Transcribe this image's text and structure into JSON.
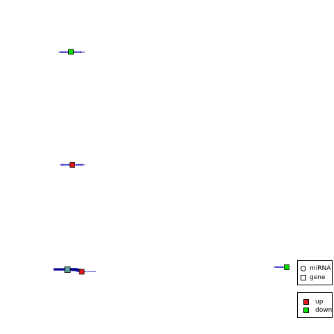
{
  "legend_shape": {
    "items": [
      {
        "label": "miRNA",
        "symbol": "circle"
      },
      {
        "label": "gene",
        "symbol": "square"
      }
    ]
  },
  "legend_color": {
    "items": [
      {
        "label": "up",
        "color": "#e31a1c"
      },
      {
        "label": "down",
        "color": "#00e000"
      }
    ]
  },
  "colors": {
    "edge": "#00008b",
    "label_text": "#0000cd",
    "up": "#e31a1c",
    "down": "#00e000",
    "neutral": "#5f9ea0"
  }
}
